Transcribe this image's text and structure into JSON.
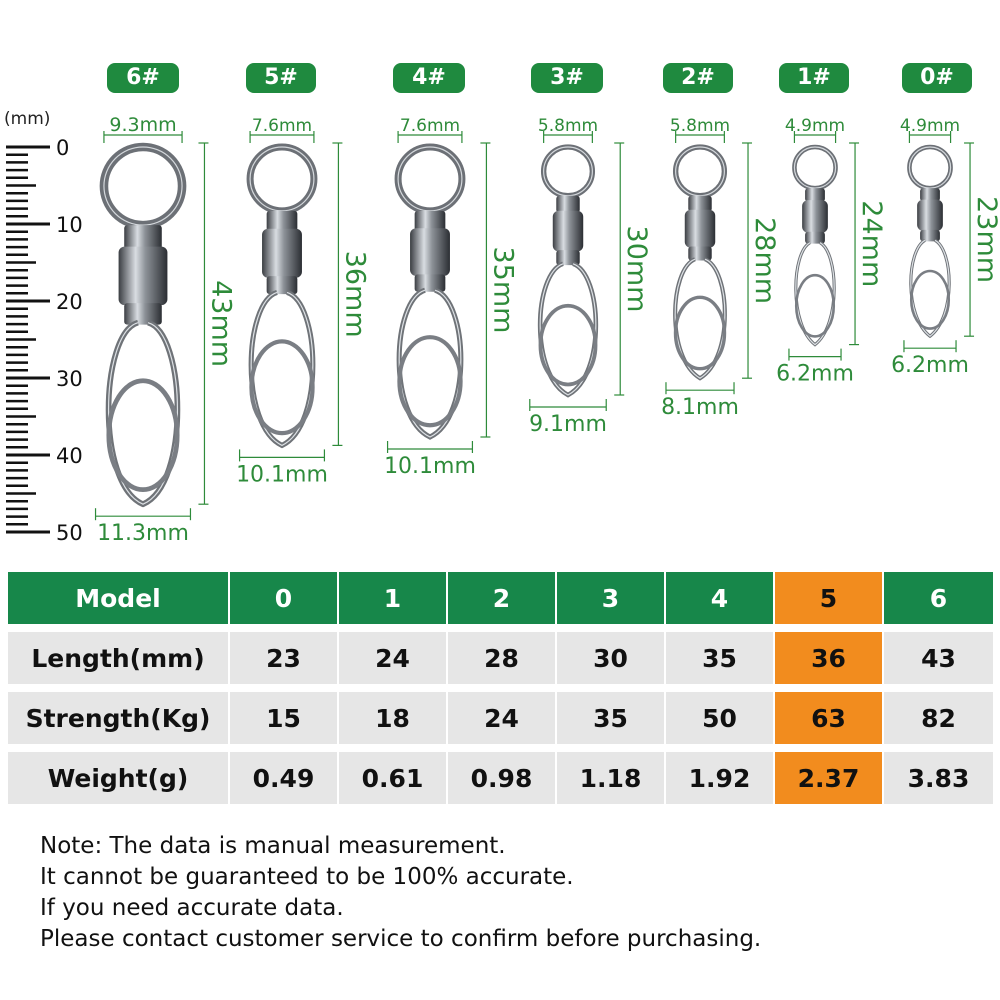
{
  "figure": {
    "unit_label": "(mm)",
    "ruler_labels": [
      "0",
      "10",
      "20",
      "30",
      "40",
      "50"
    ],
    "swivels": [
      {
        "size": "6#",
        "ring_width": "9.3mm",
        "length": "43mm",
        "clip_width": "11.3mm"
      },
      {
        "size": "5#",
        "ring_width": "7.6mm",
        "length": "36mm",
        "clip_width": "10.1mm"
      },
      {
        "size": "4#",
        "ring_width": "7.6mm",
        "length": "35mm",
        "clip_width": "10.1mm"
      },
      {
        "size": "3#",
        "ring_width": "5.8mm",
        "length": "30mm",
        "clip_width": "9.1mm"
      },
      {
        "size": "2#",
        "ring_width": "5.8mm",
        "length": "28mm",
        "clip_width": "8.1mm"
      },
      {
        "size": "1#",
        "ring_width": "4.9mm",
        "length": "24mm",
        "clip_width": "6.2mm"
      },
      {
        "size": "0#",
        "ring_width": "4.9mm",
        "length": "23mm",
        "clip_width": "6.2mm"
      }
    ]
  },
  "table": {
    "highlight_column": "5",
    "header": {
      "label": "Model",
      "models": [
        "0",
        "1",
        "2",
        "3",
        "4",
        "5",
        "6"
      ]
    },
    "rows": [
      {
        "label": "Length(mm)",
        "values": [
          "23",
          "24",
          "28",
          "30",
          "35",
          "36",
          "43"
        ]
      },
      {
        "label": "Strength(Kg)",
        "values": [
          "15",
          "18",
          "24",
          "35",
          "50",
          "63",
          "82"
        ]
      },
      {
        "label": "Weight(g)",
        "values": [
          "0.49",
          "0.61",
          "0.98",
          "1.18",
          "1.92",
          "2.37",
          "3.83"
        ]
      }
    ]
  },
  "notes": [
    "Note: The data is manual measurement.",
    "It cannot be guaranteed to be 100% accurate.",
    "If you need accurate data.",
    "Please contact customer service to confirm before purchasing."
  ],
  "colors": {
    "header_green": "#17874a",
    "badge_green": "#1f8a3f",
    "highlight_orange": "#f28c1e",
    "row_gray": "#e6e6e6",
    "dimension_green": "#2e8b3a"
  }
}
